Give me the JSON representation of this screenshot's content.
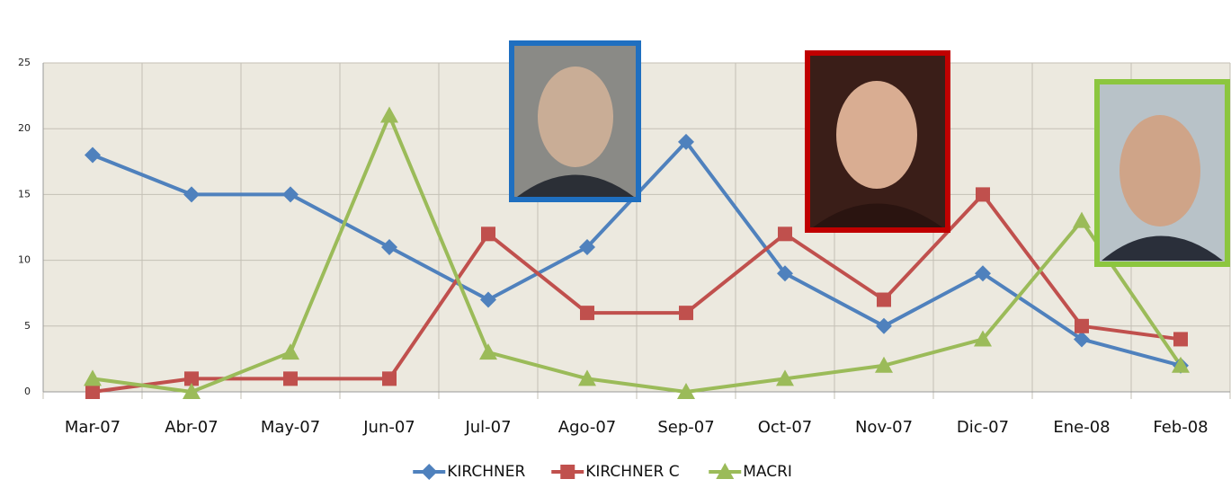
{
  "chart_data": {
    "type": "line",
    "categories": [
      "Mar-07",
      "Abr-07",
      "May-07",
      "Jun-07",
      "Jul-07",
      "Ago-07",
      "Sep-07",
      "Oct-07",
      "Nov-07",
      "Dic-07",
      "Ene-08",
      "Feb-08"
    ],
    "series": [
      {
        "name": "KIRCHNER",
        "color": "#4f81bd",
        "marker": "diamond",
        "values": [
          18,
          15,
          15,
          11,
          7,
          11,
          19,
          9,
          5,
          9,
          4,
          2
        ]
      },
      {
        "name": "KIRCHNER C",
        "color": "#c0504d",
        "marker": "square",
        "values": [
          0,
          1,
          1,
          1,
          12,
          6,
          6,
          12,
          7,
          15,
          5,
          4
        ]
      },
      {
        "name": "MACRI",
        "color": "#9bbb59",
        "marker": "triangle",
        "values": [
          1,
          0,
          3,
          21,
          3,
          1,
          0,
          1,
          2,
          4,
          13,
          2
        ]
      }
    ],
    "ylim": [
      0,
      25
    ],
    "yticks": [
      0,
      5,
      10,
      15,
      20,
      25
    ],
    "grid": true,
    "legend": "bottom"
  }
}
